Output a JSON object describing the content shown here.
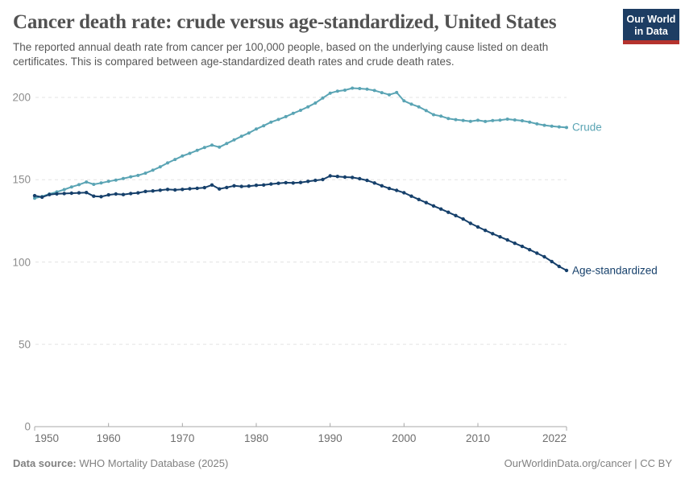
{
  "header": {
    "title": "Cancer death rate: crude versus age-standardized, United States",
    "subtitle_line1": "The reported annual death rate from cancer per 100,000 people, based on the underlying cause listed on death",
    "subtitle_line2": "certificates. This is compared between age-standardized death rates and crude death rates.",
    "logo": {
      "line1": "Our World",
      "line2": "in Data"
    }
  },
  "footer": {
    "source_label": "Data source:",
    "source_text": " WHO Mortality Database (2025)",
    "credit": "OurWorldinData.org/cancer | CC BY"
  },
  "colors": {
    "crude_line": "#5aa4b4",
    "age_standardized_line": "#16406b",
    "logo_background": "#1d3d63",
    "logo_red": "#b5332e",
    "gridline": "#e3e3e3",
    "axis": "#a8a8a8"
  },
  "chart_data": {
    "type": "line",
    "title": "Cancer death rate: crude versus age-standardized, United States",
    "xlabel": "",
    "ylabel": "",
    "xlim": [
      1950,
      2022
    ],
    "ylim": [
      0,
      200
    ],
    "x_ticks": [
      1950,
      1960,
      1970,
      1980,
      1990,
      2000,
      2010,
      2022
    ],
    "y_ticks": [
      0,
      50,
      100,
      150,
      200
    ],
    "grid": "horizontal-dashed",
    "legend_position": "line-end-labels",
    "x": [
      1950,
      1951,
      1952,
      1953,
      1954,
      1955,
      1956,
      1957,
      1958,
      1959,
      1960,
      1961,
      1962,
      1963,
      1964,
      1965,
      1966,
      1967,
      1968,
      1969,
      1970,
      1971,
      1972,
      1973,
      1974,
      1975,
      1976,
      1977,
      1978,
      1979,
      1980,
      1981,
      1982,
      1983,
      1984,
      1985,
      1986,
      1987,
      1988,
      1989,
      1990,
      1991,
      1992,
      1993,
      1994,
      1995,
      1996,
      1997,
      1998,
      1999,
      2000,
      2001,
      2002,
      2003,
      2004,
      2005,
      2006,
      2007,
      2008,
      2009,
      2010,
      2011,
      2012,
      2013,
      2014,
      2015,
      2016,
      2017,
      2018,
      2019,
      2020,
      2021,
      2022
    ],
    "series": [
      {
        "name": "Crude",
        "color": "#5aa4b4",
        "marker_radius": 2,
        "values": [
          138.8,
          139.8,
          141.3,
          142.6,
          144.0,
          145.6,
          147.0,
          148.6,
          147.2,
          148.0,
          149.0,
          149.8,
          150.7,
          151.8,
          152.6,
          154.0,
          155.8,
          157.8,
          160.2,
          162.3,
          164.4,
          166.0,
          167.8,
          169.6,
          171.0,
          169.8,
          172.0,
          174.2,
          176.4,
          178.4,
          180.8,
          182.8,
          185.0,
          186.6,
          188.3,
          190.3,
          192.2,
          194.3,
          196.6,
          199.6,
          202.6,
          203.8,
          204.4,
          205.6,
          205.4,
          205.0,
          204.2,
          202.9,
          201.6,
          203.0,
          197.9,
          195.9,
          194.3,
          192.0,
          189.5,
          188.6,
          187.2,
          186.5,
          186.0,
          185.5,
          186.1,
          185.4,
          185.9,
          186.2,
          186.8,
          186.3,
          185.8,
          185.0,
          183.9,
          183.1,
          182.5,
          182.1,
          181.7
        ]
      },
      {
        "name": "Age-standardized",
        "color": "#16406b",
        "marker_radius": 2.2,
        "values": [
          140.3,
          139.4,
          141.0,
          141.4,
          141.6,
          141.8,
          142.0,
          142.2,
          140.0,
          139.7,
          140.8,
          141.3,
          141.0,
          141.6,
          142.0,
          142.9,
          143.2,
          143.6,
          144.1,
          143.8,
          144.1,
          144.5,
          144.8,
          145.2,
          146.8,
          144.4,
          145.3,
          146.3,
          145.9,
          146.1,
          146.6,
          146.8,
          147.4,
          147.8,
          148.2,
          148.0,
          148.3,
          149.0,
          149.6,
          150.1,
          152.3,
          152.0,
          151.6,
          151.4,
          150.6,
          149.6,
          148.0,
          146.3,
          144.7,
          143.5,
          142.1,
          140.0,
          138.0,
          136.1,
          134.1,
          132.2,
          130.2,
          128.2,
          126.1,
          123.5,
          121.3,
          119.2,
          117.2,
          115.3,
          113.4,
          111.4,
          109.5,
          107.5,
          105.4,
          103.2,
          100.3,
          97.3,
          94.9
        ]
      }
    ]
  }
}
